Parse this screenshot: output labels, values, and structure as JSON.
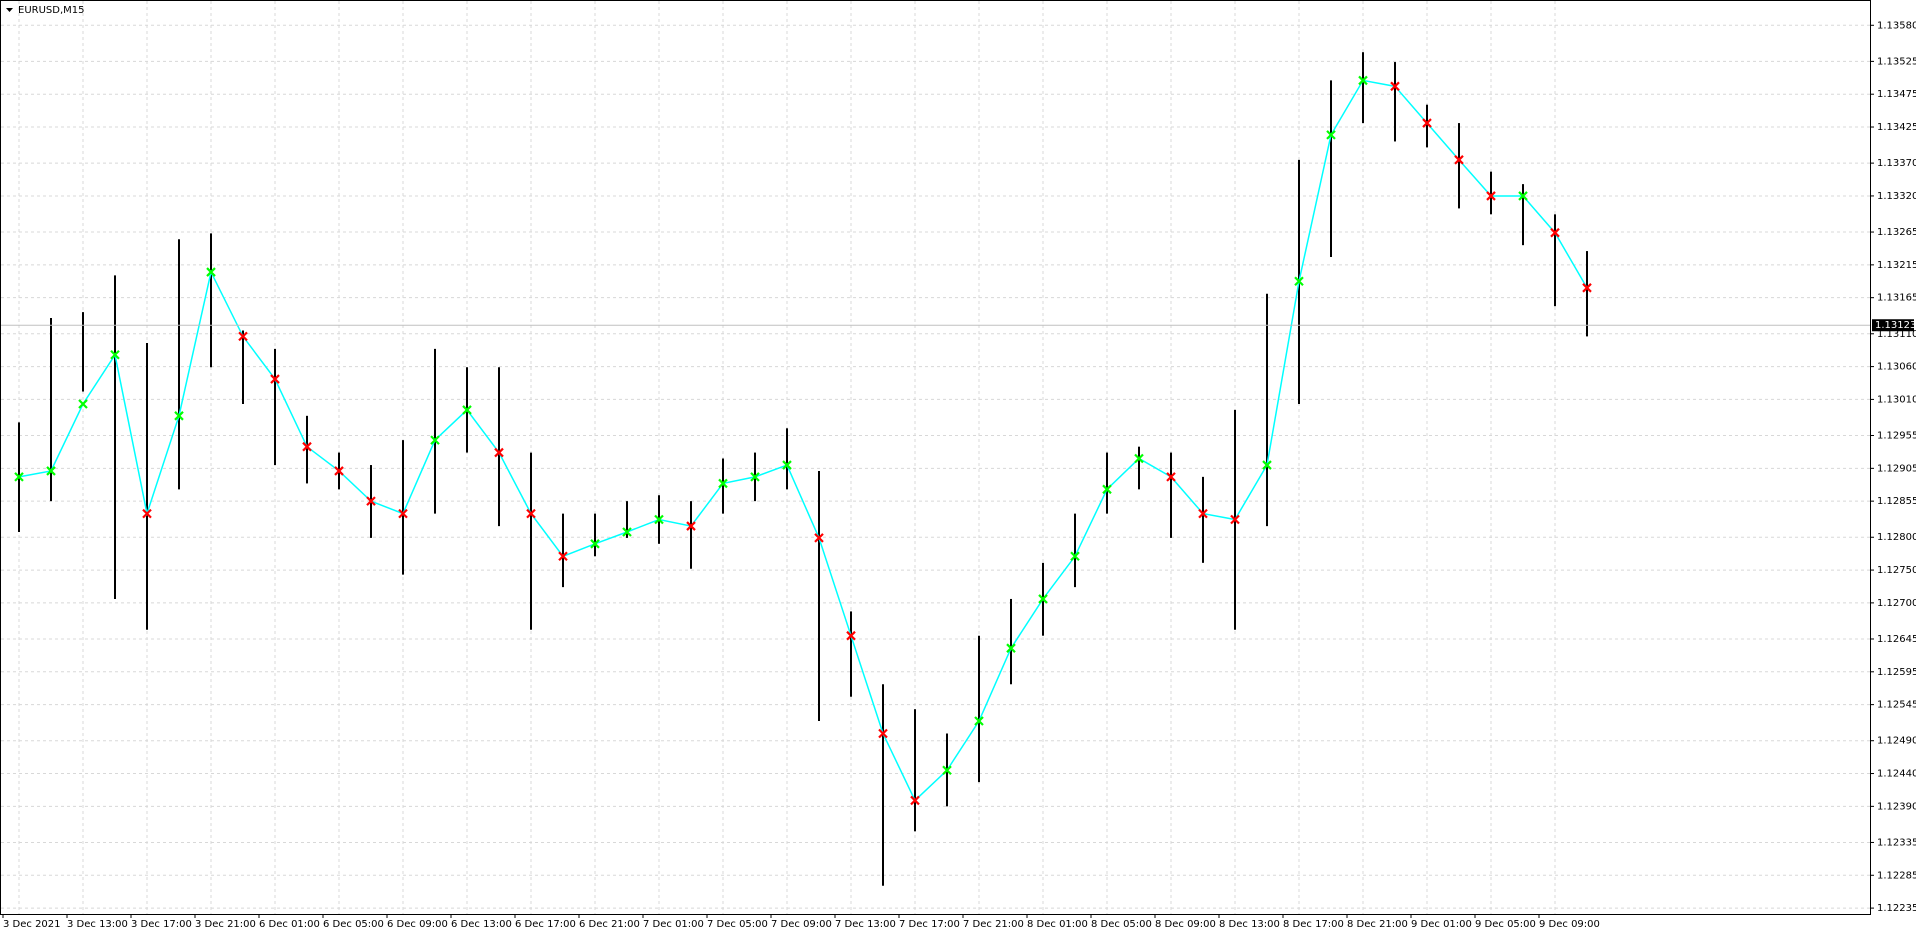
{
  "chart_data": {
    "type": "candlestick",
    "title": "EURUSD,M15",
    "categories": [
      "3 Dec 2021",
      null,
      "3 Dec 13:00",
      null,
      "3 Dec 17:00",
      null,
      "3 Dec 21:00",
      null,
      "6 Dec 01:00",
      null,
      "6 Dec 05:00",
      null,
      "6 Dec 09:00",
      null,
      "6 Dec 13:00",
      null,
      "6 Dec 17:00",
      null,
      "6 Dec 21:00",
      null,
      "7 Dec 01:00",
      null,
      "7 Dec 05:00",
      null,
      "7 Dec 09:00",
      null,
      "7 Dec 13:00",
      null,
      "7 Dec 17:00",
      null,
      "7 Dec 21:00",
      null,
      "8 Dec 01:00",
      null,
      "8 Dec 05:00",
      null,
      "8 Dec 09:00",
      null,
      "8 Dec 13:00",
      null,
      "8 Dec 17:00",
      null,
      "8 Dec 21:00",
      null,
      "9 Dec 01:00",
      null,
      "9 Dec 05:00",
      null,
      "9 Dec 09:00",
      null
    ],
    "high": [
      1.12975,
      1.13134,
      1.13143,
      1.13199,
      1.13096,
      1.13254,
      1.13263,
      1.13115,
      1.13087,
      1.12985,
      1.12929,
      1.1291,
      1.12948,
      1.13087,
      1.13059,
      1.13059,
      1.12929,
      1.12836,
      1.12836,
      1.12855,
      1.12864,
      1.12855,
      1.1292,
      1.12929,
      1.12966,
      1.12901,
      1.12687,
      1.12576,
      1.12538,
      1.12501,
      1.1265,
      1.12706,
      1.12761,
      1.12836,
      1.12929,
      1.12938,
      1.12929,
      1.12892,
      1.12994,
      1.13171,
      1.13375,
      1.13496,
      1.13539,
      1.13524,
      1.13459,
      1.13431,
      1.13357,
      1.13338,
      1.13292,
      1.13236
    ],
    "low": [
      1.12808,
      1.12855,
      1.13022,
      1.12706,
      1.12659,
      1.12873,
      1.13059,
      1.13003,
      1.1291,
      1.12882,
      1.12873,
      1.12799,
      1.12743,
      1.12836,
      1.12929,
      1.12817,
      1.12659,
      1.12724,
      1.12771,
      1.12799,
      1.1279,
      1.12752,
      1.12836,
      1.12855,
      1.12873,
      1.1252,
      1.12557,
      1.12269,
      1.12352,
      1.1239,
      1.12427,
      1.12576,
      1.1265,
      1.12724,
      1.12836,
      1.12873,
      1.12799,
      1.12761,
      1.12659,
      1.12817,
      1.13003,
      1.13227,
      1.13431,
      1.13403,
      1.13394,
      1.13301,
      1.13292,
      1.13245,
      1.13152,
      1.13106
    ],
    "color": "#000000",
    "indicator": {
      "color": "#00ffff",
      "up_color": "#00ff00",
      "down_color": "#ff0000",
      "values": [
        1.12892,
        1.12901,
        1.13003,
        1.13078,
        1.12836,
        1.12985,
        1.13204,
        1.13106,
        1.13041,
        1.12938,
        1.12901,
        1.12855,
        1.12836,
        1.12948,
        1.12994,
        1.12929,
        1.12836,
        1.12771,
        1.1279,
        1.12808,
        1.12827,
        1.12817,
        1.12882,
        1.12892,
        1.1291,
        1.12799,
        1.1265,
        1.12501,
        1.12399,
        1.12445,
        1.1252,
        1.12631,
        1.12706,
        1.12771,
        1.12873,
        1.1292,
        1.12892,
        1.12836,
        1.12827,
        1.1291,
        1.1319,
        1.13413,
        1.13496,
        1.13487,
        1.13431,
        1.13375,
        1.1332,
        1.1332,
        1.13264,
        1.1318
      ]
    },
    "ylim": [
      1.12226,
      1.13617
    ],
    "yticks": [
      {
        "value": 1.1358,
        "label": "1.13580"
      },
      {
        "value": 1.13525,
        "label": "1.13525"
      },
      {
        "value": 1.13475,
        "label": "1.13475"
      },
      {
        "value": 1.13425,
        "label": "1.13425"
      },
      {
        "value": 1.1337,
        "label": "1.13370"
      },
      {
        "value": 1.1332,
        "label": "1.13320"
      },
      {
        "value": 1.13265,
        "label": "1.13265"
      },
      {
        "value": 1.13215,
        "label": "1.13215"
      },
      {
        "value": 1.13165,
        "label": "1.13165"
      },
      {
        "value": 1.1311,
        "label": "1.13110"
      },
      {
        "value": 1.1306,
        "label": "1.13060"
      },
      {
        "value": 1.1301,
        "label": "1.13010"
      },
      {
        "value": 1.12955,
        "label": "1.12955"
      },
      {
        "value": 1.12905,
        "label": "1.12905"
      },
      {
        "value": 1.12855,
        "label": "1.12855"
      },
      {
        "value": 1.128,
        "label": "1.12800"
      },
      {
        "value": 1.1275,
        "label": "1.12750"
      },
      {
        "value": 1.127,
        "label": "1.12700"
      },
      {
        "value": 1.12645,
        "label": "1.12645"
      },
      {
        "value": 1.12595,
        "label": "1.12595"
      },
      {
        "value": 1.12545,
        "label": "1.12545"
      },
      {
        "value": 1.1249,
        "label": "1.12490"
      },
      {
        "value": 1.1244,
        "label": "1.12440"
      },
      {
        "value": 1.1239,
        "label": "1.12390"
      },
      {
        "value": 1.12335,
        "label": "1.12335"
      },
      {
        "value": 1.12285,
        "label": "1.12285"
      },
      {
        "value": 1.12235,
        "label": "1.12235"
      }
    ],
    "last_price": {
      "value": 1.13123,
      "label": "1.13123"
    },
    "grid": true
  }
}
